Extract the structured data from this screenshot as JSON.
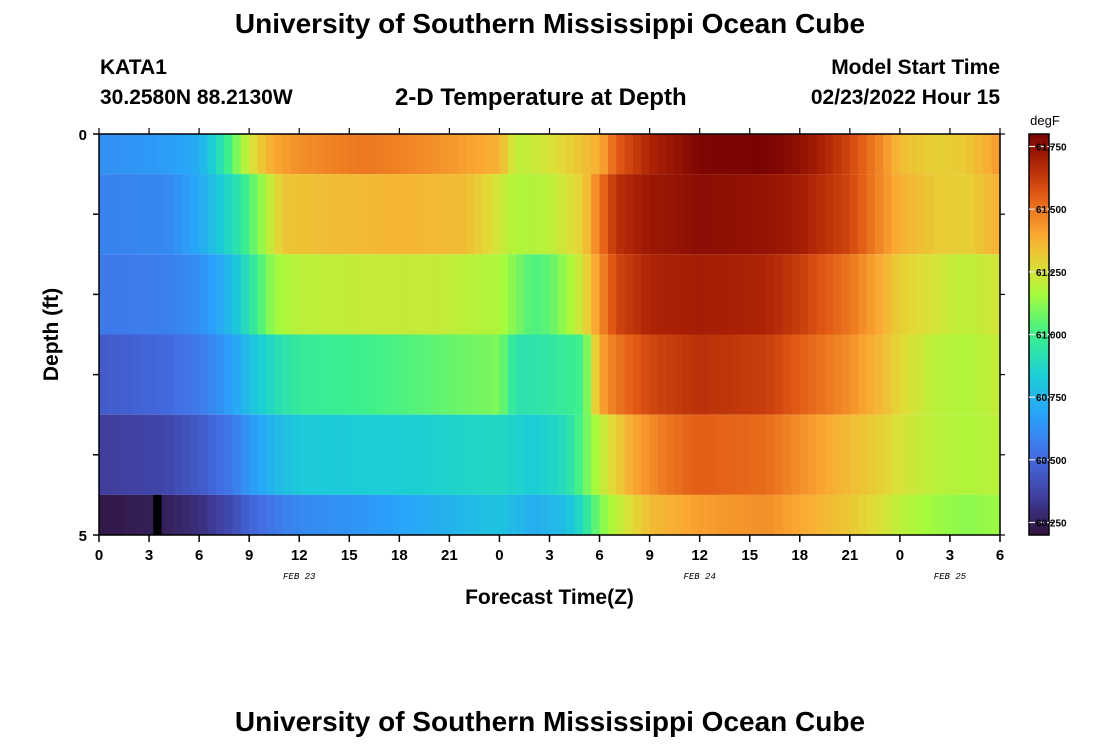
{
  "header": {
    "title": "University of Southern Mississippi Ocean Cube",
    "station": "KATA1",
    "coordinates": "30.2580N  88.2130W",
    "subtitle": "2-D Temperature at Depth",
    "model_start_label": "Model Start Time",
    "model_start_value": "02/23/2022 Hour 15"
  },
  "footer": {
    "title": "University of Southern Mississippi Ocean Cube"
  },
  "chart_data": {
    "type": "heatmap",
    "title": "2-D Temperature at Depth",
    "xlabel": "Forecast Time(Z)",
    "ylabel": "Depth (ft)",
    "x_hours": [
      0,
      3,
      6,
      9,
      12,
      15,
      18,
      21,
      24,
      27,
      30,
      33,
      36,
      39,
      42,
      45,
      48,
      51,
      54
    ],
    "x_tick_labels": [
      "0",
      "3",
      "6",
      "9",
      "12",
      "15",
      "18",
      "21",
      "0",
      "3",
      "6",
      "9",
      "12",
      "15",
      "18",
      "21",
      "0",
      "3",
      "6"
    ],
    "date_labels": [
      {
        "hour": 12,
        "label": "FEB 23"
      },
      {
        "hour": 36,
        "label": "FEB 24"
      },
      {
        "hour": 51,
        "label": "FEB 25"
      }
    ],
    "xlim": [
      0,
      54
    ],
    "y_tick_labels": [
      {
        "depth": 0,
        "label": "0"
      },
      {
        "depth": 5,
        "label": "5"
      }
    ],
    "ylim": [
      0,
      5
    ],
    "depth_bands": [
      0,
      1,
      2,
      3,
      4,
      5
    ],
    "colorbar": {
      "unit": "degF",
      "min": 60.2,
      "max": 61.8,
      "ticks": [
        61.75,
        61.5,
        61.25,
        61.0,
        60.75,
        60.5,
        60.25
      ],
      "tick_labels": [
        "61.750",
        "61.500",
        "61.250",
        "61.000",
        "60.750",
        "60.500",
        "60.250"
      ]
    },
    "series": [
      {
        "name": "0 ft",
        "hours": [
          0,
          4,
          6,
          7.5,
          8.5,
          9.5,
          10.5,
          12,
          16,
          20,
          24,
          25,
          27,
          30,
          31,
          33,
          36,
          40,
          42,
          45,
          47,
          48,
          50,
          52,
          53.5,
          54
        ],
        "values": [
          60.62,
          60.66,
          60.72,
          60.95,
          61.15,
          61.3,
          61.4,
          61.45,
          61.5,
          61.45,
          61.38,
          61.2,
          61.25,
          61.38,
          61.55,
          61.68,
          61.79,
          61.8,
          61.75,
          61.6,
          61.45,
          61.35,
          61.3,
          61.32,
          61.4,
          61.45
        ]
      },
      {
        "name": "1 ft",
        "hours": [
          0,
          4,
          6,
          7.5,
          8.5,
          9.5,
          10.5,
          11,
          14,
          18,
          22,
          25,
          27,
          29,
          30,
          31,
          33,
          36,
          40,
          42,
          45,
          47,
          48,
          50,
          52,
          54
        ],
        "values": [
          60.58,
          60.6,
          60.7,
          60.85,
          60.95,
          61.1,
          61.25,
          61.33,
          61.35,
          61.37,
          61.35,
          61.18,
          61.2,
          61.3,
          61.5,
          61.65,
          61.72,
          61.76,
          61.74,
          61.7,
          61.6,
          61.45,
          61.38,
          61.32,
          61.3,
          61.38
        ]
      },
      {
        "name": "2 ft",
        "hours": [
          0,
          4,
          6,
          7.5,
          8.5,
          9.5,
          10.5,
          12,
          16,
          20,
          24,
          26,
          27,
          29,
          30,
          31,
          33,
          36,
          40,
          42,
          45,
          47,
          48,
          50,
          52,
          54
        ],
        "values": [
          60.55,
          60.57,
          60.62,
          60.72,
          60.85,
          61.0,
          61.15,
          61.2,
          61.22,
          61.22,
          61.18,
          61.02,
          61.05,
          61.25,
          61.45,
          61.6,
          61.68,
          61.7,
          61.68,
          61.62,
          61.5,
          61.38,
          61.3,
          61.25,
          61.2,
          61.25
        ]
      },
      {
        "name": "3 ft",
        "hours": [
          0,
          4,
          6,
          8,
          9,
          10.5,
          12,
          16,
          20,
          24,
          25,
          27,
          29,
          30,
          31,
          33,
          36,
          40,
          42,
          45,
          47,
          48,
          50,
          52,
          54
        ],
        "values": [
          60.45,
          60.5,
          60.55,
          60.68,
          60.78,
          60.9,
          60.97,
          61.0,
          61.05,
          61.1,
          60.92,
          60.95,
          61.0,
          61.4,
          61.5,
          61.6,
          61.65,
          61.62,
          61.55,
          61.45,
          61.35,
          61.28,
          61.2,
          61.18,
          61.22
        ]
      },
      {
        "name": "4 ft",
        "hours": [
          0,
          4,
          6,
          8,
          9,
          10.5,
          12,
          16,
          20,
          24,
          26,
          28,
          29,
          30,
          32,
          34,
          36,
          40,
          42,
          45,
          47,
          48,
          50,
          52,
          54
        ],
        "values": [
          60.35,
          60.38,
          60.45,
          60.55,
          60.65,
          60.75,
          60.82,
          60.83,
          60.85,
          60.88,
          60.83,
          60.9,
          61.05,
          61.2,
          61.4,
          61.5,
          61.55,
          61.52,
          61.45,
          61.35,
          61.3,
          61.25,
          61.2,
          61.18,
          61.2
        ]
      },
      {
        "name": "5 ft",
        "hours": [
          0,
          4,
          6,
          8,
          9,
          10.5,
          12,
          16,
          20,
          24,
          26,
          28,
          29,
          30,
          31,
          33,
          36,
          40,
          42,
          45,
          47,
          48,
          50,
          52,
          54
        ],
        "values": [
          60.22,
          60.25,
          60.3,
          60.4,
          60.48,
          60.55,
          60.6,
          60.65,
          60.72,
          60.8,
          60.72,
          60.78,
          60.9,
          61.1,
          61.2,
          61.35,
          61.42,
          61.45,
          61.4,
          61.32,
          61.25,
          61.2,
          61.15,
          61.12,
          61.15
        ]
      }
    ],
    "marker": {
      "hour": 3.5,
      "depth_band": 5,
      "color": "#000000"
    }
  }
}
